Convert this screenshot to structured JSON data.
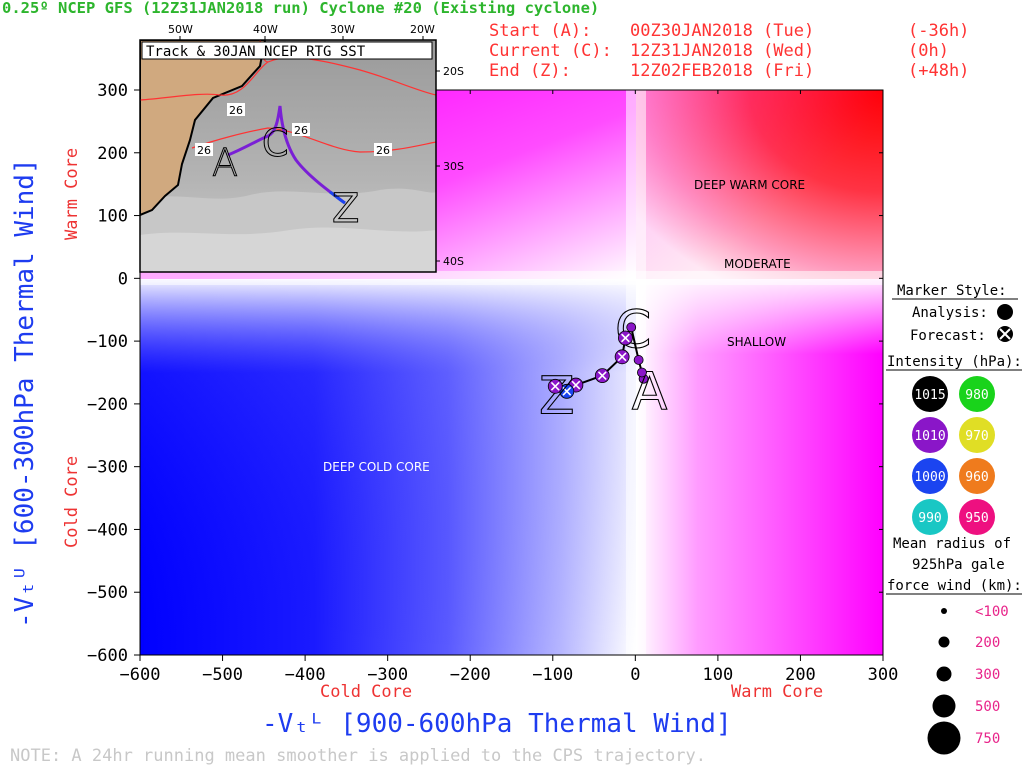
{
  "header": {
    "title": "0.25º NCEP GFS (12Z31JAN2018 run) Cyclone #20 (Existing cyclone)",
    "start_label": "Start (A):",
    "start_time": "00Z30JAN2018 (Tue)",
    "start_offset": "(-36h)",
    "current_label": "Current (C):",
    "current_time": "12Z31JAN2018 (Wed)",
    "current_offset": "(0h)",
    "end_label": "End (Z):",
    "end_time": "12Z02FEB2018 (Fri)",
    "end_offset": "(+48h)"
  },
  "colors": {
    "title": "#2db52d",
    "header": "#ff3333",
    "axis_blue": "#1e3cf0",
    "core_red": "#ee3333",
    "deep_blue": "#0000ff",
    "deep_red": "#ff0000",
    "magenta": "#ff00ff",
    "track_purple": "#7a1fd6",
    "size_pink": "#e8248a"
  },
  "chart_data": {
    "type": "scatter",
    "xlabel": "-Vₜᴸ [900-600hPa Thermal Wind]",
    "ylabel": "-Vₜᵁ [600-300hPa Thermal Wind]",
    "xlim": [
      -600,
      300
    ],
    "ylim": [
      -600,
      300
    ],
    "xticks": [
      -600,
      -500,
      -400,
      -300,
      -200,
      -100,
      0,
      100,
      200,
      300
    ],
    "yticks": [
      -600,
      -500,
      -400,
      -300,
      -200,
      -100,
      0,
      100,
      200,
      300
    ],
    "x_side_labels": {
      "left": "Cold Core",
      "right": "Warm Core"
    },
    "y_side_labels": {
      "top": "Warm Core",
      "bottom": "Cold Core"
    },
    "regions": {
      "deep_warm": "DEEP WARM CORE",
      "moderate": "MODERATE",
      "shallow": "SHALLOW",
      "deep_cold": "DEEP COLD CORE"
    },
    "track": {
      "points": [
        {
          "x": 10,
          "y": -160,
          "type": "analysis",
          "label": "A"
        },
        {
          "x": 8,
          "y": -150,
          "type": "analysis"
        },
        {
          "x": 4,
          "y": -130,
          "type": "analysis"
        },
        {
          "x": -5,
          "y": -78,
          "type": "analysis",
          "label": "C"
        },
        {
          "x": -12,
          "y": -95,
          "type": "forecast"
        },
        {
          "x": -16,
          "y": -125,
          "type": "forecast"
        },
        {
          "x": -40,
          "y": -155,
          "type": "forecast"
        },
        {
          "x": -72,
          "y": -170,
          "type": "forecast"
        },
        {
          "x": -83,
          "y": -180,
          "type": "forecast",
          "label": "Z"
        },
        {
          "x": -97,
          "y": -172,
          "type": "forecast"
        }
      ]
    },
    "inset": {
      "title": "Track & 30JAN NCEP RTG SST",
      "lon_labels": [
        "50W",
        "40W",
        "30W",
        "20W"
      ],
      "lat_labels": [
        "20S",
        "30S",
        "40S"
      ],
      "isotherm_labels": [
        "26",
        "26",
        "26",
        "26"
      ]
    }
  },
  "legend": {
    "marker_style": "Marker Style:",
    "analysis": "Analysis:",
    "forecast": "Forecast:",
    "intensity_title": "Intensity (hPa):",
    "intensity_items": [
      {
        "value": "1015",
        "color": "#000000",
        "text_color": "#ffffff"
      },
      {
        "value": "980",
        "color": "#19d31b",
        "text_color": "#ffffff"
      },
      {
        "value": "1010",
        "color": "#8a16c8",
        "text_color": "#ffffff"
      },
      {
        "value": "970",
        "color": "#e0de25",
        "text_color": "#ffffff"
      },
      {
        "value": "1000",
        "color": "#1b44f0",
        "text_color": "#ffffff"
      },
      {
        "value": "960",
        "color": "#ef7b1d",
        "text_color": "#ffffff"
      },
      {
        "value": "990",
        "color": "#19c7c4",
        "text_color": "#ffffff"
      },
      {
        "value": "950",
        "color": "#ee1080",
        "text_color": "#ffffff"
      }
    ],
    "radius_title_1": "Mean radius of",
    "radius_title_2": "925hPa gale",
    "radius_title_3": "force wind (km):",
    "radius_items": [
      "<100",
      "200",
      "300",
      "500",
      "750"
    ]
  },
  "note": "NOTE:  A 24hr running mean smoother is applied to the CPS trajectory."
}
